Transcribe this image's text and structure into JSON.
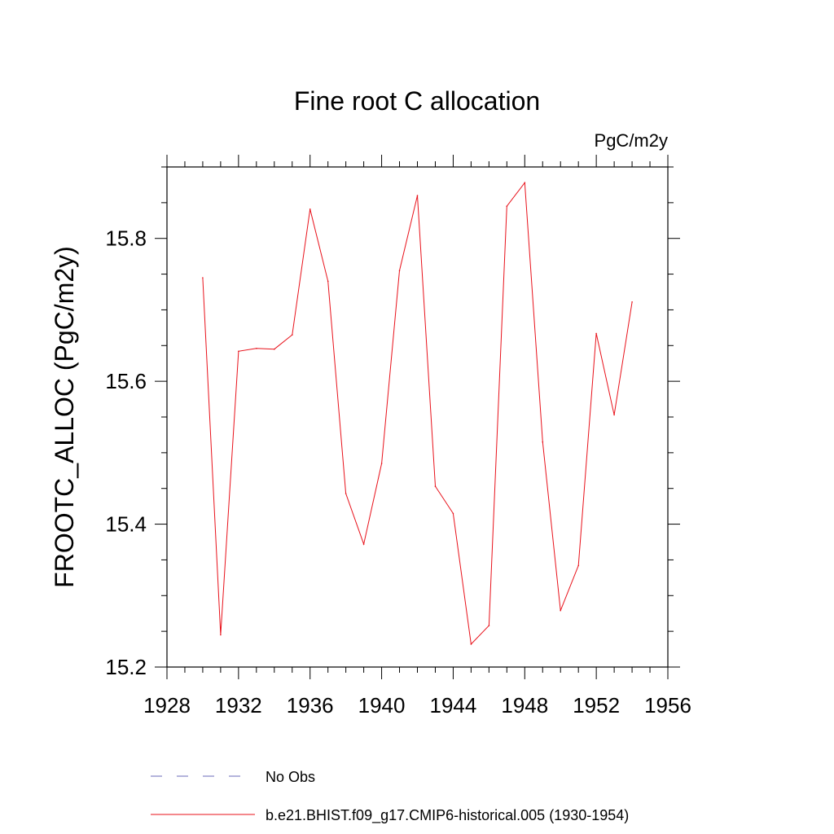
{
  "chart_data": {
    "type": "line",
    "title": "Fine root C allocation",
    "units_label": "PgC/m2y",
    "xlabel": "",
    "ylabel": "FROOTC_ALLOC  (PgC/m2y)",
    "xlim": [
      1928,
      1956
    ],
    "ylim": [
      15.2,
      15.9
    ],
    "x_ticks": [
      1928,
      1932,
      1936,
      1940,
      1944,
      1948,
      1952,
      1956
    ],
    "x_tick_labels": [
      "1928",
      "1932",
      "1936",
      "1940",
      "1944",
      "1948",
      "1952",
      "1956"
    ],
    "y_ticks": [
      15.2,
      15.4,
      15.6,
      15.8
    ],
    "y_tick_labels": [
      "15.2",
      "15.4",
      "15.6",
      "15.8"
    ],
    "x_minor_step": 1,
    "y_minor_step": 0.05,
    "grid": false,
    "legend_position": "bottom",
    "series": [
      {
        "name": "No Obs",
        "color": "#6a6ab8",
        "dash": "dashed",
        "x": [],
        "values": []
      },
      {
        "name": "b.e21.BHIST.f09_g17.CMIP6-historical.005 (1930-1954)",
        "color": "#e8111a",
        "dash": "solid",
        "x": [
          1930,
          1931,
          1932,
          1933,
          1934,
          1935,
          1936,
          1937,
          1938,
          1939,
          1940,
          1941,
          1942,
          1943,
          1944,
          1945,
          1946,
          1947,
          1948,
          1949,
          1950,
          1951,
          1952,
          1953,
          1954
        ],
        "values": [
          15.745,
          15.245,
          15.642,
          15.646,
          15.645,
          15.665,
          15.841,
          15.74,
          15.443,
          15.372,
          15.485,
          15.755,
          15.86,
          15.453,
          15.415,
          15.232,
          15.258,
          15.845,
          15.878,
          15.515,
          15.279,
          15.342,
          15.667,
          15.553,
          15.711
        ]
      }
    ]
  }
}
